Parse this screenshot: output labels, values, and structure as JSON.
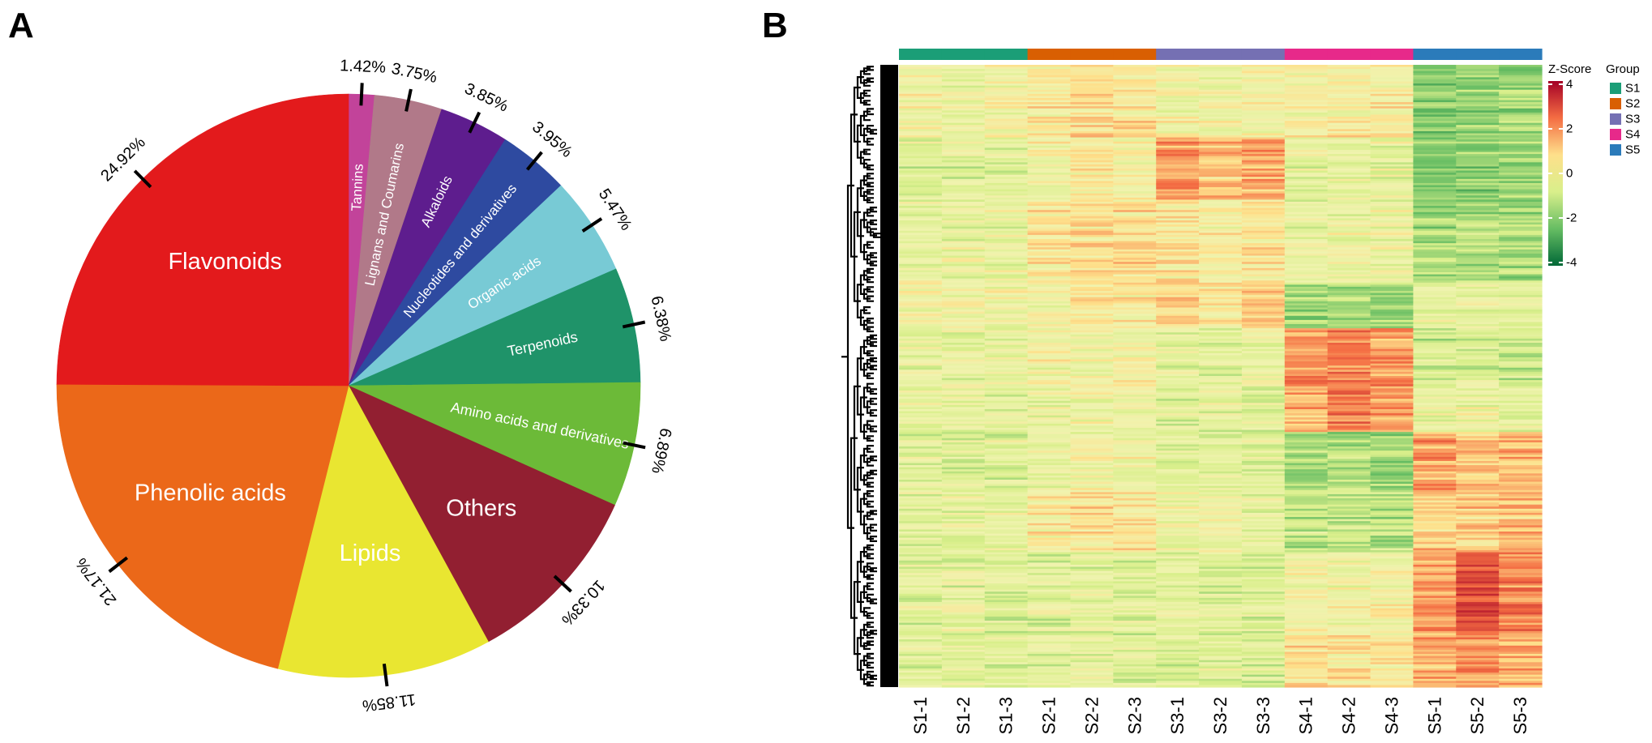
{
  "figure": {
    "panel_a_label": "A",
    "panel_b_label": "B"
  },
  "chart_data": [
    {
      "type": "pie",
      "panel": "A",
      "start_angle_deg": 0,
      "direction": "clockwise",
      "slices": [
        {
          "label": "Tannins",
          "value": 1.42,
          "pct_text": "1.42%",
          "color": "#c2439a"
        },
        {
          "label": "Lignans and Coumarins",
          "value": 3.75,
          "pct_text": "3.75%",
          "color": "#b17989"
        },
        {
          "label": "Alkaloids",
          "value": 3.85,
          "pct_text": "3.85%",
          "color": "#5e1d8e"
        },
        {
          "label": "Nucleotides and derivatives",
          "value": 3.95,
          "pct_text": "3.95%",
          "color": "#2e4aa0"
        },
        {
          "label": "Organic acids",
          "value": 5.47,
          "pct_text": "5.47%",
          "color": "#78cad5"
        },
        {
          "label": "Terpenoids",
          "value": 6.38,
          "pct_text": "6.38%",
          "color": "#1f9369"
        },
        {
          "label": "Amino acids and derivatives",
          "value": 6.89,
          "pct_text": "6.89%",
          "color": "#6cba38"
        },
        {
          "label": "Others",
          "value": 10.33,
          "pct_text": "10.33%",
          "color": "#921f31"
        },
        {
          "label": "Lipids",
          "value": 11.85,
          "pct_text": "11.85%",
          "color": "#e9e631"
        },
        {
          "label": "Phenolic acids",
          "value": 21.17,
          "pct_text": "21.17%",
          "color": "#eb6819"
        },
        {
          "label": "Flavonoids",
          "value": 24.92,
          "pct_text": "24.92%",
          "color": "#e31a1c"
        }
      ]
    },
    {
      "type": "heatmap",
      "panel": "B",
      "columns": [
        "S1-1",
        "S1-2",
        "S1-3",
        "S2-1",
        "S2-2",
        "S2-3",
        "S3-1",
        "S3-2",
        "S3-3",
        "S4-1",
        "S4-2",
        "S4-3",
        "S5-1",
        "S5-2",
        "S5-3"
      ],
      "column_groups": [
        "S1",
        "S1",
        "S1",
        "S2",
        "S2",
        "S2",
        "S3",
        "S3",
        "S3",
        "S4",
        "S4",
        "S4",
        "S5",
        "S5",
        "S5"
      ],
      "colorbar": {
        "title": "Z-Score",
        "range": [
          -4,
          4
        ],
        "ticks": [
          "4",
          "2",
          "0",
          "-2",
          "-4"
        ],
        "colors": [
          "#a50026",
          "#f46d43",
          "#fee08b",
          "#d9ef8b",
          "#66bd63",
          "#006837"
        ]
      },
      "group_legend": {
        "title": "Group",
        "entries": [
          {
            "label": "S1",
            "color": "#1b9e77"
          },
          {
            "label": "S2",
            "color": "#d95f02"
          },
          {
            "label": "S3",
            "color": "#7570b3"
          },
          {
            "label": "S4",
            "color": "#e7298a"
          },
          {
            "label": "S5",
            "color": "#2b7bba"
          }
        ]
      },
      "row_clusters": [
        {
          "rows": 35,
          "base": [
            0.1,
            -0.2,
            0.0,
            0.3,
            0.6,
            0.5,
            0.0,
            -0.1,
            0.1,
            0.2,
            0.3,
            0.3,
            -1.6,
            -1.5,
            -1.4
          ]
        },
        {
          "rows": 30,
          "base": [
            -0.5,
            -0.5,
            -0.4,
            0.0,
            0.3,
            0.2,
            1.5,
            1.0,
            1.3,
            -0.3,
            -0.2,
            -0.3,
            -1.5,
            -1.6,
            -1.4
          ]
        },
        {
          "rows": 40,
          "base": [
            -0.2,
            -0.3,
            -0.2,
            0.4,
            0.6,
            0.6,
            0.4,
            0.2,
            0.5,
            -0.2,
            -0.1,
            -0.2,
            -1.3,
            -1.2,
            -1.3
          ]
        },
        {
          "rows": 22,
          "base": [
            0.0,
            0.1,
            -0.1,
            0.0,
            0.5,
            0.4,
            0.9,
            0.4,
            0.9,
            -1.3,
            -1.2,
            -1.4,
            -0.3,
            -0.2,
            -0.4
          ]
        },
        {
          "rows": 28,
          "base": [
            -0.3,
            -0.4,
            -0.3,
            0.0,
            -0.2,
            0.0,
            -0.4,
            -0.5,
            -0.3,
            1.5,
            1.7,
            1.5,
            -0.8,
            -0.7,
            -0.9
          ]
        },
        {
          "rows": 22,
          "base": [
            -0.4,
            -0.3,
            -0.4,
            -0.2,
            -0.1,
            -0.2,
            -0.5,
            -0.4,
            -0.5,
            1.2,
            1.8,
            1.4,
            -0.3,
            -0.2,
            -0.3
          ]
        },
        {
          "rows": 28,
          "base": [
            -0.4,
            -0.5,
            -0.4,
            -0.1,
            0.1,
            0.0,
            -0.3,
            -0.3,
            -0.4,
            -1.2,
            -1.1,
            -1.3,
            1.4,
            1.1,
            1.2
          ]
        },
        {
          "rows": 30,
          "base": [
            -0.4,
            -0.3,
            -0.4,
            0.3,
            0.5,
            0.4,
            -0.2,
            -0.1,
            -0.3,
            -1.0,
            -1.0,
            -1.1,
            0.9,
            0.8,
            1.0
          ]
        },
        {
          "rows": 40,
          "base": [
            -0.5,
            -0.4,
            -0.5,
            -0.5,
            -0.4,
            -0.5,
            -0.4,
            -0.5,
            -0.5,
            0.1,
            0.0,
            0.1,
            1.4,
            2.6,
            1.8
          ]
        },
        {
          "rows": 25,
          "base": [
            -0.4,
            -0.4,
            -0.5,
            -0.4,
            -0.3,
            -0.4,
            -0.5,
            -0.4,
            -0.5,
            0.6,
            0.5,
            0.5,
            1.2,
            1.5,
            1.2
          ]
        }
      ]
    }
  ]
}
